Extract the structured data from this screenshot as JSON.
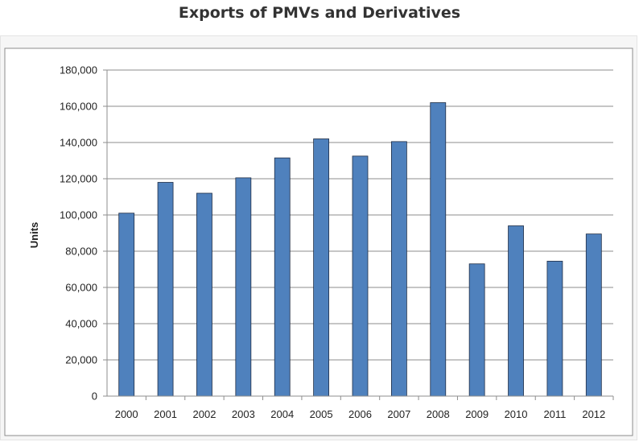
{
  "page": {
    "title": "Exports of PMVs and Derivatives"
  },
  "chart_data": {
    "type": "bar",
    "title": "",
    "xlabel": "",
    "ylabel": "Units",
    "categories": [
      "2000",
      "2001",
      "2002",
      "2003",
      "2004",
      "2005",
      "2006",
      "2007",
      "2008",
      "2009",
      "2010",
      "2011",
      "2012"
    ],
    "series": [
      {
        "values": [
          101000,
          118000,
          112000,
          120500,
          131500,
          142000,
          132500,
          140500,
          162000,
          73000,
          94000,
          74500,
          89500
        ]
      }
    ],
    "ylim": [
      0,
      180000
    ],
    "yticks": [
      "0",
      "20,000",
      "40,000",
      "60,000",
      "80,000",
      "100,000",
      "120,000",
      "140,000",
      "160,000",
      "180,000"
    ],
    "grid": true,
    "legend": "none",
    "colors": {
      "bar_fill": "#4f81bd",
      "bar_stroke": "#1f2d45",
      "grid": "#8e8e8e",
      "axis": "#8e8e8e"
    }
  }
}
